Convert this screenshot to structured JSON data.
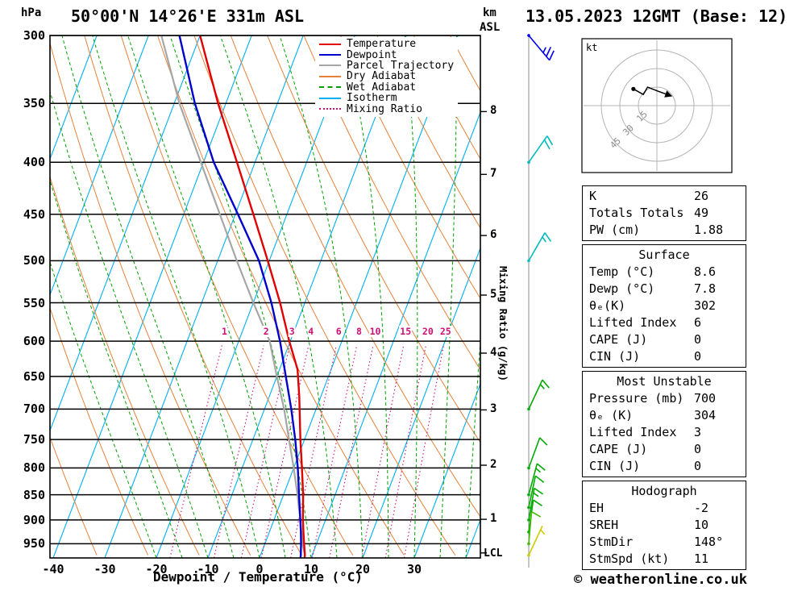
{
  "header": {
    "station_title": "50°00'N 14°26'E 331m ASL",
    "datetime": "13.05.2023 12GMT (Base: 12)"
  },
  "axes": {
    "pressure_unit": "hPa",
    "km_unit_line1": "km",
    "km_unit_line2": "ASL",
    "x_axis_title": "Dewpoint / Temperature (°C)",
    "right_axis_title": "Mixing Ratio (g/kg)",
    "lcl_label": "LCL",
    "lcl_pressure": 970,
    "pressure_ticks": [
      300,
      350,
      400,
      450,
      500,
      550,
      600,
      650,
      700,
      750,
      800,
      850,
      900,
      950
    ],
    "temperature_ticks": [
      -40,
      -30,
      -20,
      -10,
      0,
      10,
      20,
      30
    ],
    "km_ticks": [
      {
        "km": 1,
        "p": 898.8
      },
      {
        "km": 2,
        "p": 795.0
      },
      {
        "km": 3,
        "p": 701.2
      },
      {
        "km": 4,
        "p": 616.6
      },
      {
        "km": 5,
        "p": 540.5
      },
      {
        "km": 6,
        "p": 472.2
      },
      {
        "km": 7,
        "p": 411.1
      },
      {
        "km": 8,
        "p": 356.5
      }
    ]
  },
  "legend": [
    {
      "label": "Temperature",
      "color": "#e00000",
      "line_style": "solid"
    },
    {
      "label": "Dewpoint",
      "color": "#0000cc",
      "line_style": "solid"
    },
    {
      "label": "Parcel Trajectory",
      "color": "#a6a6a6",
      "line_style": "solid"
    },
    {
      "label": "Dry Adiabat",
      "color": "#e5823a",
      "line_style": "solid"
    },
    {
      "label": "Wet Adiabat",
      "color": "#00a000",
      "line_style": "dashed"
    },
    {
      "label": "Isotherm",
      "color": "#00b0f0",
      "line_style": "solid"
    },
    {
      "label": "Mixing Ratio",
      "color": "#cc1177",
      "line_style": "dotted"
    }
  ],
  "style": {
    "temperature": "#e00000",
    "dewpoint": "#0000cc",
    "parcel": "#a6a6a6",
    "dry_adiabat": "#e5823a",
    "wet_adiabat": "#00a000",
    "isotherm": "#00b0f0",
    "mixing_ratio": "#cc1177"
  },
  "chart_data": {
    "type": "skewt_logp_sounding",
    "pressure_range_hpa": [
      300,
      981
    ],
    "temperature_axis_range_c": [
      -40,
      35
    ],
    "skew": 0.38,
    "isotherm_step_c": 10,
    "dry_adiabat_theta_c": {
      "min": -30,
      "max": 130,
      "step": 10
    },
    "wet_adiabat_thetaw_c": {
      "min": -20,
      "max": 40,
      "step": 5
    },
    "mixing_ratio_lines_gkg": [
      1,
      2,
      3,
      4,
      6,
      8,
      10,
      15,
      20,
      25
    ],
    "profiles": {
      "temperature": [
        [
          300,
          -50
        ],
        [
          350,
          -41.5
        ],
        [
          400,
          -33.5
        ],
        [
          450,
          -26.5
        ],
        [
          500,
          -20.3
        ],
        [
          550,
          -14.8
        ],
        [
          600,
          -10.2
        ],
        [
          640,
          -6.5
        ],
        [
          680,
          -4.2
        ],
        [
          700,
          -3.2
        ],
        [
          750,
          -0.8
        ],
        [
          800,
          1.6
        ],
        [
          850,
          3.8
        ],
        [
          900,
          5.6
        ],
        [
          925,
          6.6
        ],
        [
          950,
          7.6
        ],
        [
          975,
          8.6
        ],
        [
          980,
          8.7
        ]
      ],
      "dewpoint": [
        [
          300,
          -54
        ],
        [
          350,
          -46
        ],
        [
          400,
          -38
        ],
        [
          450,
          -29.5
        ],
        [
          500,
          -22
        ],
        [
          550,
          -16.5
        ],
        [
          600,
          -12
        ],
        [
          640,
          -9
        ],
        [
          700,
          -4.8
        ],
        [
          750,
          -1.8
        ],
        [
          800,
          0.8
        ],
        [
          850,
          3.0
        ],
        [
          900,
          5.1
        ],
        [
          925,
          6.1
        ],
        [
          950,
          7.0
        ],
        [
          975,
          7.8
        ],
        [
          980,
          7.9
        ]
      ],
      "parcel": [
        [
          300,
          -57.5
        ],
        [
          350,
          -49
        ],
        [
          400,
          -40.5
        ],
        [
          450,
          -33
        ],
        [
          500,
          -26.3
        ],
        [
          550,
          -20
        ],
        [
          600,
          -14
        ],
        [
          650,
          -10
        ],
        [
          700,
          -6.2
        ],
        [
          750,
          -3.0
        ],
        [
          800,
          0.0
        ],
        [
          850,
          2.7
        ],
        [
          900,
          5.1
        ],
        [
          950,
          7.3
        ],
        [
          975,
          8.6
        ],
        [
          980,
          8.7
        ]
      ]
    },
    "wind_barbs": [
      {
        "p": 300,
        "speed_kt": 25,
        "dir_deg": 140,
        "flip": true,
        "color": "#0000ee"
      },
      {
        "p": 400,
        "speed_kt": 20,
        "dir_deg": 35,
        "color": "#00bbbb"
      },
      {
        "p": 500,
        "speed_kt": 15,
        "dir_deg": 30,
        "color": "#00bbbb"
      },
      {
        "p": 700,
        "speed_kt": 15,
        "dir_deg": 25,
        "color": "#00aa00"
      },
      {
        "p": 800,
        "speed_kt": 10,
        "dir_deg": 20,
        "color": "#00aa00"
      },
      {
        "p": 850,
        "speed_kt": 15,
        "dir_deg": 15,
        "color": "#00aa00"
      },
      {
        "p": 875,
        "speed_kt": 10,
        "dir_deg": 12,
        "color": "#00aa00"
      },
      {
        "p": 900,
        "speed_kt": 15,
        "dir_deg": 10,
        "color": "#00aa00"
      },
      {
        "p": 925,
        "speed_kt": 10,
        "dir_deg": 8,
        "color": "#00aa00"
      },
      {
        "p": 950,
        "speed_kt": 10,
        "dir_deg": 5,
        "color": "#44bb00"
      },
      {
        "p": 975,
        "speed_kt": 5,
        "dir_deg": 25,
        "color": "#cccc00"
      }
    ]
  },
  "hodograph": {
    "unit": "kt",
    "rings_kt": [
      15,
      30,
      45
    ],
    "trace_kt": [
      [
        -19,
        13.5
      ],
      [
        -11,
        9
      ],
      [
        -7.5,
        15
      ],
      [
        1.5,
        11.5
      ],
      [
        7,
        9.5
      ]
    ]
  },
  "panels": [
    {
      "rows": [
        [
          "K",
          "26"
        ],
        [
          "Totals Totals",
          "49"
        ],
        [
          "PW (cm)",
          "1.88"
        ]
      ]
    },
    {
      "title": "Surface",
      "rows": [
        [
          "Temp (°C)",
          "8.6"
        ],
        [
          "Dewp (°C)",
          "7.8"
        ],
        [
          "θₑ(K)",
          "302"
        ],
        [
          "Lifted Index",
          "6"
        ],
        [
          "CAPE (J)",
          "0"
        ],
        [
          "CIN (J)",
          "0"
        ]
      ]
    },
    {
      "title": "Most Unstable",
      "rows": [
        [
          "Pressure (mb)",
          "700"
        ],
        [
          "θₑ (K)",
          "304"
        ],
        [
          "Lifted Index",
          "3"
        ],
        [
          "CAPE (J)",
          "0"
        ],
        [
          "CIN (J)",
          "0"
        ]
      ]
    },
    {
      "title": "Hodograph",
      "rows": [
        [
          "EH",
          "-2"
        ],
        [
          "SREH",
          "10"
        ],
        [
          "StmDir",
          "148°"
        ],
        [
          "StmSpd (kt)",
          "11"
        ]
      ]
    }
  ],
  "footer": {
    "copyright": "© weatheronline.co.uk"
  }
}
